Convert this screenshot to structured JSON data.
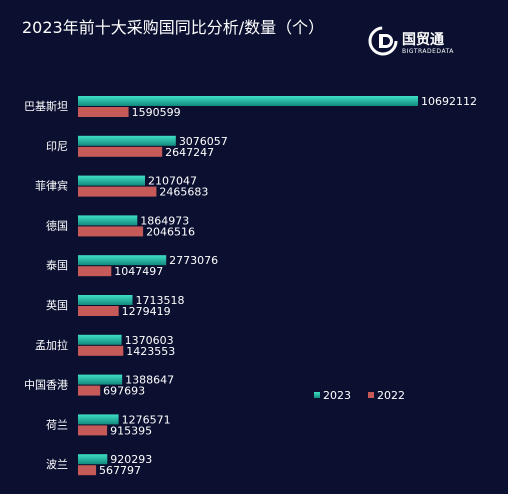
{
  "title": "2023年前十大采购国同比分析/数量（个）",
  "logo": {
    "name": "国贸通",
    "sub": "BIGTRADEDATA"
  },
  "colors": {
    "s2023_top": "#3ee0c4",
    "s2023_bottom": "#138a7e",
    "s2022": "#c55a58"
  },
  "chart_data": {
    "type": "bar",
    "orientation": "horizontal",
    "categories": [
      "巴基斯坦",
      "印尼",
      "菲律宾",
      "德国",
      "泰国",
      "英国",
      "孟加拉",
      "中国香港",
      "荷兰",
      "波兰"
    ],
    "series": [
      {
        "name": "2023",
        "values": [
          10692112,
          3076057,
          2107047,
          1864973,
          2773076,
          1713518,
          1370603,
          1388647,
          1276571,
          920293
        ]
      },
      {
        "name": "2022",
        "values": [
          1590599,
          2647247,
          2465683,
          2046516,
          1047497,
          1279419,
          1423553,
          697693,
          915395,
          567797
        ]
      }
    ],
    "legend": "bottom-right",
    "grid": false
  }
}
